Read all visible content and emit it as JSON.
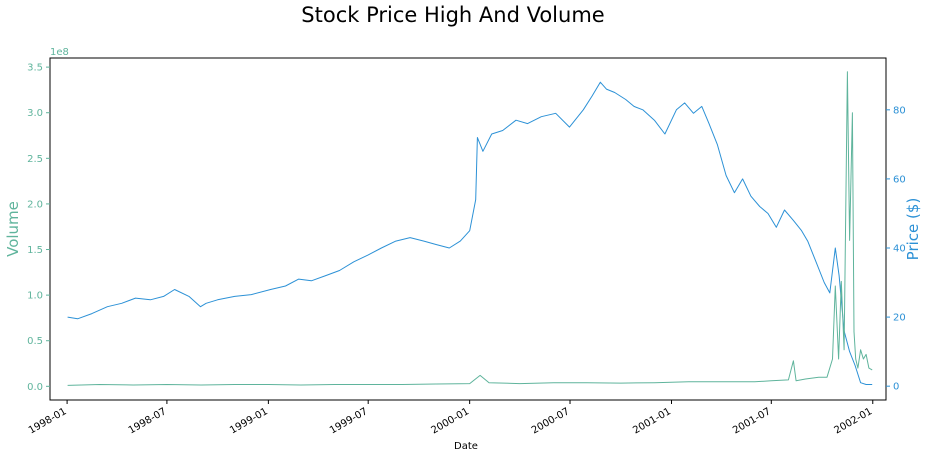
{
  "chart_data": {
    "type": "line",
    "title": "Stock Price High And Volume",
    "xlabel": "Date",
    "ylabel_left": "Volume",
    "ylabel_right": "Price ($)",
    "left_axis_offset_label": "1e8",
    "xlim": [
      "1997-12-01",
      "2002-01-25"
    ],
    "ylim_left": [
      -0.15,
      3.6
    ],
    "ylim_right": [
      -4,
      95
    ],
    "x_ticks": [
      "1998-01",
      "1998-07",
      "1999-01",
      "1999-07",
      "2000-01",
      "2000-07",
      "2001-01",
      "2001-07",
      "2002-01"
    ],
    "y_ticks_left": [
      "0.0",
      "0.5",
      "1.0",
      "1.5",
      "2.0",
      "2.5",
      "3.0",
      "3.5"
    ],
    "y_ticks_right": [
      "0",
      "20",
      "40",
      "60",
      "80"
    ],
    "grid": false,
    "colors": {
      "volume": "#5fb49c",
      "price": "#2c91d6"
    },
    "series": [
      {
        "axis": "right",
        "color": "#2c91d6",
        "x": [
          "1998-01-02",
          "1998-01-20",
          "1998-02-15",
          "1998-03-15",
          "1998-04-10",
          "1998-05-05",
          "1998-06-01",
          "1998-06-25",
          "1998-07-15",
          "1998-08-10",
          "1998-08-31",
          "1998-09-10",
          "1998-10-01",
          "1998-11-01",
          "1998-12-01",
          "1999-01-05",
          "1999-02-01",
          "1999-02-25",
          "1999-03-20",
          "1999-04-15",
          "1999-05-10",
          "1999-06-05",
          "1999-07-01",
          "1999-07-25",
          "1999-08-20",
          "1999-09-15",
          "1999-10-10",
          "1999-11-01",
          "1999-11-25",
          "1999-12-15",
          "2000-01-01",
          "2000-01-12",
          "2000-01-15",
          "2000-01-25",
          "2000-02-10",
          "2000-03-01",
          "2000-03-25",
          "2000-04-15",
          "2000-05-10",
          "2000-06-05",
          "2000-06-30",
          "2000-07-25",
          "2000-08-10",
          "2000-08-25",
          "2000-09-05",
          "2000-09-20",
          "2000-10-10",
          "2000-10-25",
          "2000-11-10",
          "2000-12-01",
          "2000-12-20",
          "2001-01-10",
          "2001-01-25",
          "2001-02-10",
          "2001-02-25",
          "2001-03-10",
          "2001-03-25",
          "2001-04-10",
          "2001-04-25",
          "2001-05-10",
          "2001-05-25",
          "2001-06-10",
          "2001-06-25",
          "2001-07-10",
          "2001-07-25",
          "2001-08-10",
          "2001-08-25",
          "2001-09-05",
          "2001-09-20",
          "2001-10-05",
          "2001-10-15",
          "2001-10-25",
          "2001-11-01",
          "2001-11-10",
          "2001-11-20",
          "2001-11-30",
          "2001-12-10",
          "2001-12-20",
          "2001-12-31"
        ],
        "values": [
          20,
          19.5,
          21,
          23,
          24,
          25.5,
          25,
          26,
          28,
          26,
          23,
          24,
          25,
          26,
          26.5,
          28,
          29,
          31,
          30.5,
          32,
          33.5,
          36,
          38,
          40,
          42,
          43,
          42,
          41,
          40,
          42,
          45,
          54,
          72,
          68,
          73,
          74,
          77,
          76,
          78,
          79,
          75,
          80,
          84,
          88,
          86,
          85,
          83,
          81,
          80,
          77,
          73,
          80,
          82,
          79,
          81,
          76,
          70,
          61,
          56,
          60,
          55,
          52,
          50,
          46,
          51,
          48,
          45,
          42,
          36,
          30,
          27,
          40,
          32,
          16,
          10,
          6,
          1,
          0.5,
          0.5
        ]
      },
      {
        "axis": "left",
        "color": "#5fb49c",
        "x": [
          "1998-01-02",
          "1998-03-01",
          "1998-05-01",
          "1998-07-01",
          "1998-09-01",
          "1998-11-01",
          "1999-01-01",
          "1999-03-01",
          "1999-05-01",
          "1999-07-01",
          "1999-09-01",
          "1999-11-01",
          "2000-01-01",
          "2000-01-20",
          "2000-02-05",
          "2000-04-01",
          "2000-06-01",
          "2000-08-01",
          "2000-10-01",
          "2000-12-01",
          "2001-02-01",
          "2001-04-01",
          "2001-06-01",
          "2001-07-01",
          "2001-08-01",
          "2001-08-10",
          "2001-08-15",
          "2001-09-01",
          "2001-09-25",
          "2001-10-10",
          "2001-10-20",
          "2001-10-25",
          "2001-10-31",
          "2001-11-05",
          "2001-11-10",
          "2001-11-16",
          "2001-11-20",
          "2001-11-25",
          "2001-11-28",
          "2001-12-01",
          "2001-12-05",
          "2001-12-10",
          "2001-12-15",
          "2001-12-20",
          "2001-12-25",
          "2001-12-31"
        ],
        "values": [
          0.01,
          0.02,
          0.015,
          0.02,
          0.015,
          0.02,
          0.02,
          0.015,
          0.02,
          0.02,
          0.02,
          0.025,
          0.03,
          0.12,
          0.04,
          0.03,
          0.04,
          0.04,
          0.035,
          0.04,
          0.05,
          0.05,
          0.05,
          0.06,
          0.07,
          0.28,
          0.06,
          0.08,
          0.1,
          0.1,
          0.3,
          1.1,
          0.3,
          1.15,
          0.4,
          3.45,
          1.6,
          3.0,
          0.6,
          0.3,
          0.2,
          0.4,
          0.3,
          0.35,
          0.2,
          0.18
        ]
      }
    ]
  }
}
